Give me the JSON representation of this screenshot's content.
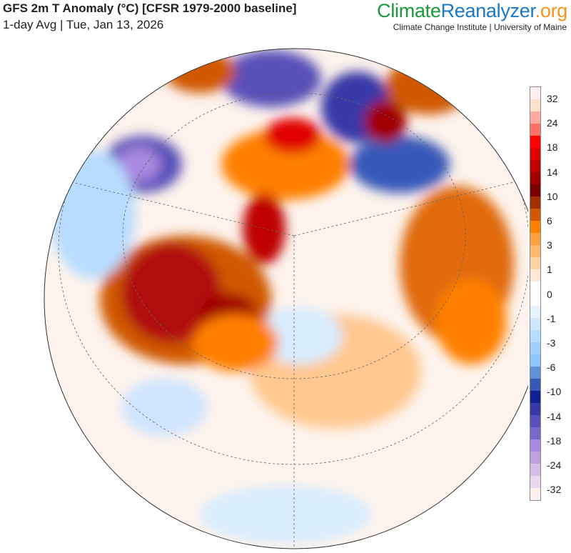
{
  "header": {
    "title": "GFS 2m T Anomaly (°C) [CFSR 1979-2000 baseline]",
    "subtitle": "1-day Avg | Tue, Jan 13, 2026"
  },
  "logo": {
    "part1": "Climate",
    "part2": "Reanalyzer",
    "part3": ".org",
    "institution": "Climate Change Institute | University of Maine"
  },
  "colorbar": {
    "labels": [
      "32",
      "24",
      "18",
      "14",
      "10",
      "6",
      "3",
      "1",
      "0",
      "-1",
      "-3",
      "-6",
      "-10",
      "-14",
      "-18",
      "-24",
      "-32"
    ],
    "colors": [
      "#fff0f0",
      "#fde0cc",
      "#ffaaa0",
      "#ff7066",
      "#ff0000",
      "#e00000",
      "#c00000",
      "#a00000",
      "#780000",
      "#a03000",
      "#d05800",
      "#ff8000",
      "#ffa040",
      "#ffb870",
      "#ffd0a0",
      "#ffe8d8",
      "#ffffff",
      "#ffffff",
      "#e8f2ff",
      "#d0e6ff",
      "#b8dcff",
      "#a0d0ff",
      "#8cc8ff",
      "#6090d8",
      "#3858b8",
      "#102090",
      "#3838a8",
      "#5850b8",
      "#7868c8",
      "#a888e0",
      "#c0a0e0",
      "#d4bce8",
      "#e8d8f0",
      "#fff0f0"
    ]
  }
}
